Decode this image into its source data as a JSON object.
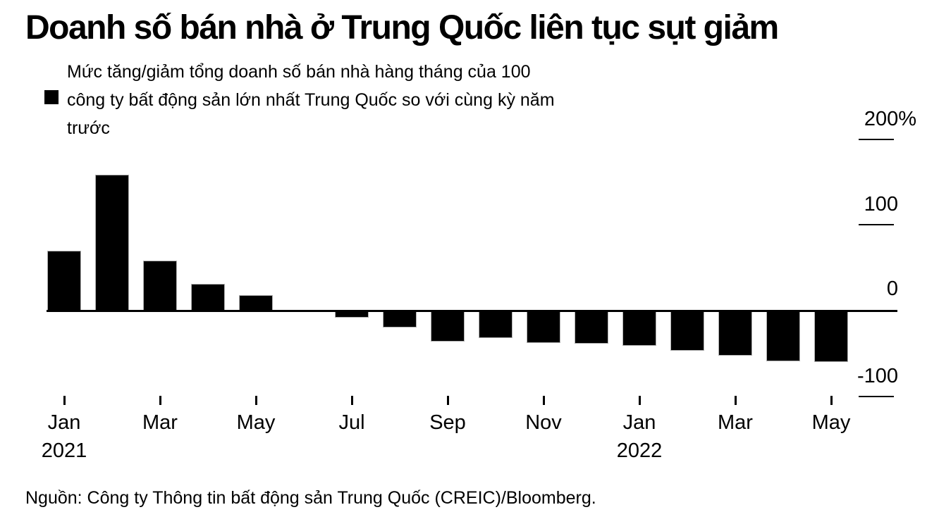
{
  "chart_data": {
    "type": "bar",
    "title": "Doanh số bán nhà ở Trung Quốc liên tục sụt giảm",
    "legend": "Mức tăng/giảm tổng doanh số bán nhà hàng tháng của 100 công ty bất động sản lớn nhất Trung Quốc so với cùng kỳ năm trước",
    "legend_lines": [
      "Mức tăng/giảm tổng doanh số bán nhà hàng tháng của 100",
      "công ty bất động sản lớn nhất Trung Quốc so với cùng kỳ năm",
      "trước"
    ],
    "source": "Nguồn: Công ty Thông tin bất động sản Trung Quốc (CREIC)/Bloomberg.",
    "unit": "%",
    "categories": [
      "Jan 2021",
      "Feb 2021",
      "Mar 2021",
      "Apr 2021",
      "May 2021",
      "Jun 2021",
      "Jul 2021",
      "Aug 2021",
      "Sep 2021",
      "Oct 2021",
      "Nov 2021",
      "Dec 2021",
      "Jan 2022",
      "Feb 2022",
      "Mar 2022",
      "Apr 2022",
      "May 2022"
    ],
    "values": [
      70,
      159,
      58,
      31,
      18,
      -2,
      -8,
      -20,
      -36,
      -32,
      -38,
      -39,
      -41,
      -47,
      -53,
      -59,
      -60
    ],
    "bar_color": "#000000",
    "background_color": "#ffffff",
    "ylim": [
      -100,
      200
    ],
    "yticks": [
      {
        "value": 200,
        "label": "200%"
      },
      {
        "value": 100,
        "label": "100"
      },
      {
        "value": 0,
        "label": "0"
      },
      {
        "value": -100,
        "label": "-100"
      }
    ],
    "xticks": [
      {
        "index": 0,
        "label": "Jan",
        "year": "2021"
      },
      {
        "index": 2,
        "label": "Mar"
      },
      {
        "index": 4,
        "label": "May"
      },
      {
        "index": 6,
        "label": "Jul"
      },
      {
        "index": 8,
        "label": "Sep"
      },
      {
        "index": 10,
        "label": "Nov"
      },
      {
        "index": 12,
        "label": "Jan",
        "year": "2022"
      },
      {
        "index": 14,
        "label": "Mar"
      },
      {
        "index": 16,
        "label": "May"
      }
    ],
    "grid": false,
    "legend_position": "top-left",
    "y_axis_side": "right"
  }
}
